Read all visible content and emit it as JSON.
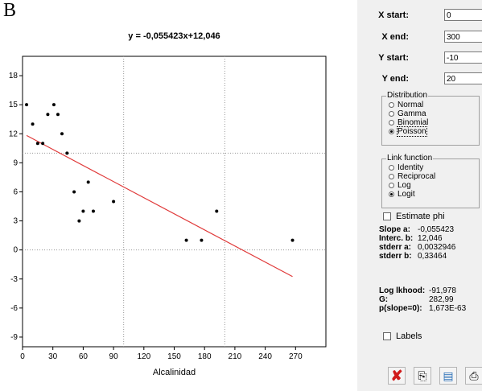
{
  "panel_letter": "B",
  "chart_data": {
    "type": "scatter",
    "title": "y = -0,055423x+12,046",
    "xlabel": "Alcalinidad",
    "ylabel": "",
    "xlim": [
      0,
      300
    ],
    "ylim": [
      -10,
      20
    ],
    "x_ticks": [
      "0",
      "30",
      "60",
      "90",
      "120",
      "150",
      "180",
      "210",
      "240",
      "270"
    ],
    "y_ticks": [
      "18",
      "15",
      "12",
      "9",
      "6",
      "3",
      "0",
      "-3",
      "-6",
      "-9"
    ],
    "x_tick_values": [
      0,
      30,
      60,
      90,
      120,
      150,
      180,
      210,
      240,
      270
    ],
    "y_tick_values": [
      18,
      15,
      12,
      9,
      6,
      3,
      0,
      -3,
      -6,
      -9
    ],
    "reference_lines": {
      "x": [
        100,
        200
      ],
      "y": [
        0,
        10
      ]
    },
    "points": [
      {
        "x": 4,
        "y": 15
      },
      {
        "x": 10,
        "y": 13
      },
      {
        "x": 15,
        "y": 11
      },
      {
        "x": 20,
        "y": 11
      },
      {
        "x": 25,
        "y": 14
      },
      {
        "x": 31,
        "y": 15
      },
      {
        "x": 35,
        "y": 14
      },
      {
        "x": 39,
        "y": 12
      },
      {
        "x": 44,
        "y": 10
      },
      {
        "x": 51,
        "y": 6
      },
      {
        "x": 56,
        "y": 3
      },
      {
        "x": 60,
        "y": 4
      },
      {
        "x": 65,
        "y": 7
      },
      {
        "x": 70,
        "y": 4
      },
      {
        "x": 90,
        "y": 5
      },
      {
        "x": 162,
        "y": 1
      },
      {
        "x": 177,
        "y": 1
      },
      {
        "x": 192,
        "y": 4
      },
      {
        "x": 267,
        "y": 1
      }
    ],
    "fit_line": {
      "slope": -0.055423,
      "intercept": 12.046,
      "x_range": [
        4,
        267
      ],
      "color": "#e03a3a"
    }
  },
  "controls": {
    "x_start": {
      "label": "X start:",
      "value": "0"
    },
    "x_end": {
      "label": "X end:",
      "value": "300"
    },
    "y_start": {
      "label": "Y start:",
      "value": "-10"
    },
    "y_end": {
      "label": "Y end:",
      "value": "20"
    },
    "distribution": {
      "title": "Distribution",
      "options": [
        "Normal",
        "Gamma",
        "Binomial",
        "Poisson"
      ],
      "selected": "Poisson"
    },
    "link_function": {
      "title": "Link function",
      "options": [
        "Identity",
        "Reciprocal",
        "Log",
        "Logit"
      ],
      "selected": "Logit"
    },
    "estimate_phi": "Estimate phi",
    "labels": "Labels"
  },
  "stats": {
    "slope_a": {
      "label": "Slope a:",
      "value": "-0,055423"
    },
    "interc_b": {
      "label": "Interc. b:",
      "value": "12,046"
    },
    "stderr_a": {
      "label": "stderr a:",
      "value": "0,0032946"
    },
    "stderr_b": {
      "label": "stderr b:",
      "value": "0,33464"
    },
    "log_lkhood": {
      "label": "Log lkhood:",
      "value": "-91,978"
    },
    "g": {
      "label": "G:",
      "value": "282,99"
    },
    "p_slope": {
      "label": "p(slope=0):",
      "value": "1,673E-63"
    }
  },
  "toolbar": {
    "close_icon": "red-x-close-icon",
    "copy_icon": "copy-icon",
    "paste_icon": "paste-icon",
    "print_icon": "printer-icon"
  }
}
